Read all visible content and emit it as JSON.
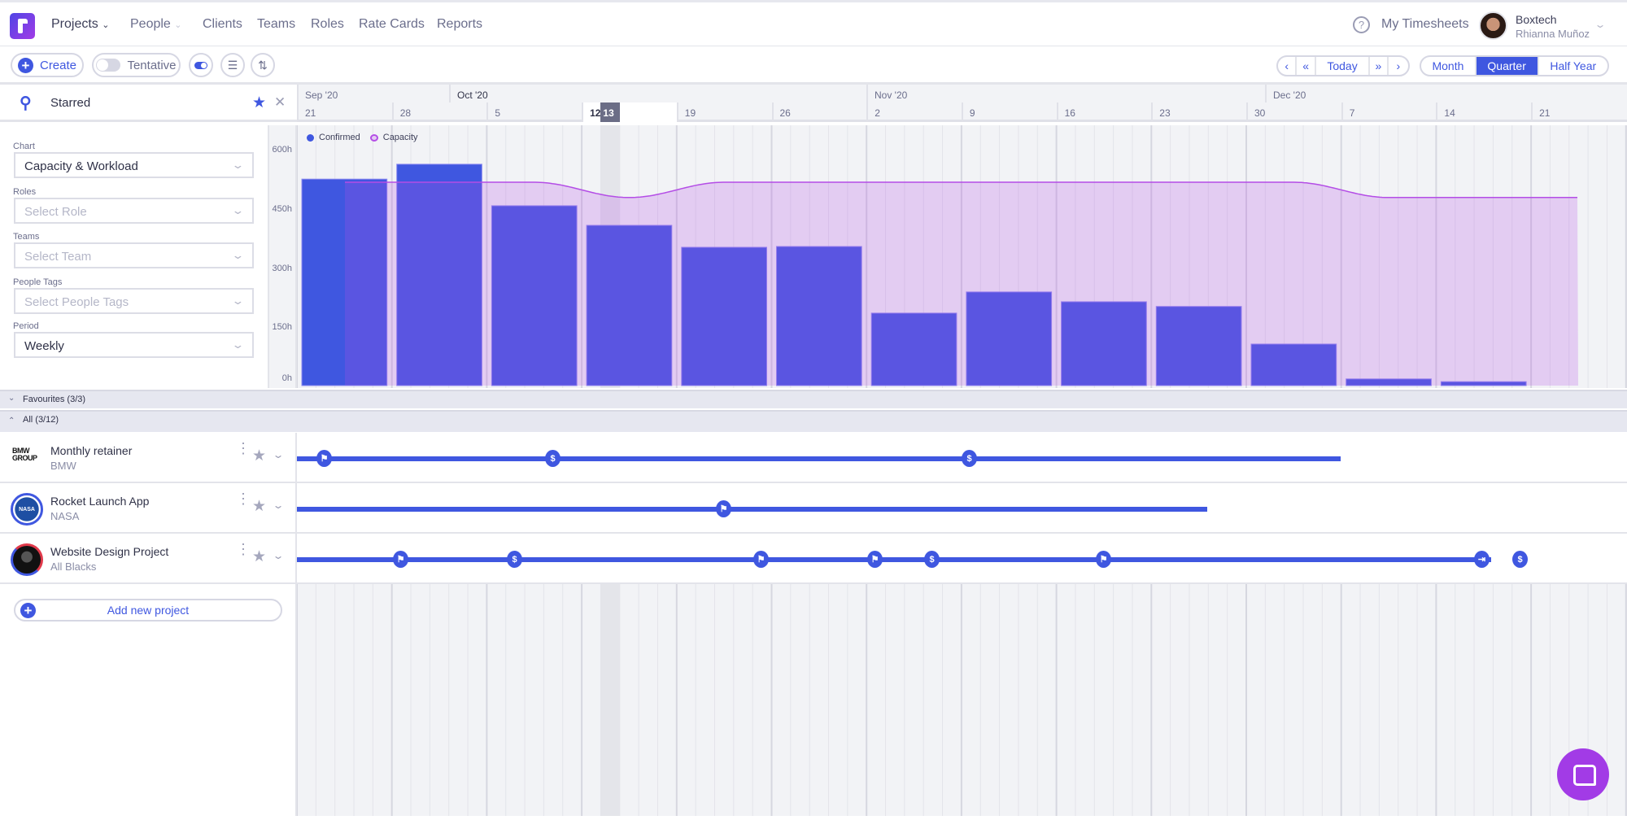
{
  "nav": {
    "items": [
      {
        "label": "Projects",
        "active": true,
        "dropdown": true
      },
      {
        "label": "People",
        "active": false,
        "dropdown": true
      },
      {
        "label": "Clients"
      },
      {
        "label": "Teams"
      },
      {
        "label": "Roles"
      },
      {
        "label": "Rate Cards"
      },
      {
        "label": "Reports"
      }
    ],
    "help_icon": "question-circle-icon",
    "my_timesheets": "My Timesheets",
    "account": {
      "company": "Boxtech",
      "user": "Rhianna Muñoz"
    }
  },
  "toolbar": {
    "create": "Create",
    "tentative": "Tentative",
    "tentative_on": false,
    "nav_buttons": {
      "prev": "‹",
      "prev_fast": "«",
      "today": "Today",
      "next_fast": "»",
      "next": "›"
    },
    "views": [
      {
        "label": "Month",
        "active": false
      },
      {
        "label": "Quarter",
        "active": true
      },
      {
        "label": "Half Year",
        "active": false
      }
    ]
  },
  "search": {
    "value": "Starred"
  },
  "timeline": {
    "months": [
      "Sep '20",
      "Oct '20",
      "Nov '20",
      "Dec '20"
    ],
    "weeks": [
      "21",
      "28",
      "5",
      "12",
      "19",
      "26",
      "2",
      "9",
      "16",
      "23",
      "30",
      "7",
      "14",
      "21"
    ],
    "today_prev_day": "12",
    "today": "13"
  },
  "filters": {
    "chart": {
      "label": "Chart",
      "value": "Capacity & Workload"
    },
    "roles": {
      "label": "Roles",
      "placeholder": "Select Role"
    },
    "teams": {
      "label": "Teams",
      "placeholder": "Select Team"
    },
    "people_tags": {
      "label": "People Tags",
      "placeholder": "Select People Tags"
    },
    "period": {
      "label": "Period",
      "value": "Weekly"
    }
  },
  "chart_data": {
    "type": "bar",
    "categories": [
      "21 Sep",
      "28 Sep",
      "5 Oct",
      "12 Oct",
      "19 Oct",
      "26 Oct",
      "2 Nov",
      "9 Nov",
      "16 Nov",
      "23 Nov",
      "30 Nov",
      "7 Dec",
      "14 Dec",
      "21 Dec"
    ],
    "series": [
      {
        "name": "Confirmed",
        "type": "bar",
        "color": "#3f57e0",
        "values": [
          527,
          565,
          459,
          409,
          353,
          355,
          185,
          239,
          214,
          202,
          106,
          17,
          10,
          null
        ]
      },
      {
        "name": "Capacity",
        "type": "area",
        "color": "#b44de6",
        "values": [
          519,
          519,
          519,
          480,
          519,
          519,
          519,
          519,
          519,
          519,
          519,
          480,
          480,
          480
        ]
      }
    ],
    "yticks": [
      "0h",
      "150h",
      "300h",
      "450h",
      "600h"
    ],
    "ylim": [
      0,
      600
    ],
    "legend": "top-left",
    "grid": true
  },
  "groups": {
    "favourites": "Favourites (3/3)",
    "all": "All (3/12)"
  },
  "projects": [
    {
      "title": "Monthly retainer",
      "client": "BMW",
      "logo": "BMW GROUP",
      "milestones": [
        "flag",
        "$",
        "$"
      ]
    },
    {
      "title": "Rocket Launch App",
      "client": "NASA",
      "logo": "NASA",
      "milestones": [
        "flag"
      ]
    },
    {
      "title": "Website Design Project",
      "client": "All Blacks",
      "logo": "All Blacks",
      "milestones": [
        "flag",
        "$",
        "flag",
        "flag",
        "$",
        "flag",
        "end",
        "$"
      ]
    }
  ],
  "add_project": "Add new project",
  "colors": {
    "accent": "#3f57e0",
    "capacity": "#b44de6",
    "brand": "#a23be6"
  }
}
